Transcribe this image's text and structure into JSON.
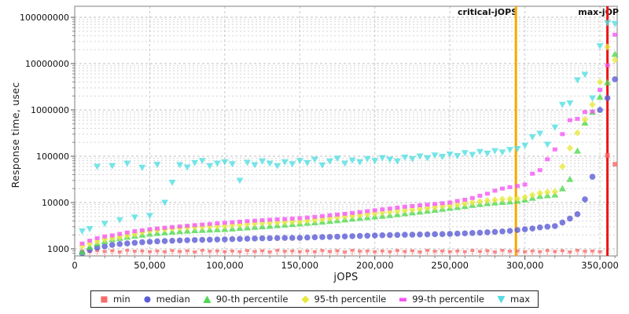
{
  "chart_data": {
    "type": "scatter",
    "title": "",
    "xlabel": "jOPS",
    "ylabel": "Response time, usec",
    "grid": "dashed",
    "legend_position": "bottom",
    "x_axis": {
      "min": 0,
      "max": 361500,
      "major_tick_step": 50000,
      "minor_tick_step": 10000,
      "tick_values": [
        0,
        50000,
        100000,
        150000,
        200000,
        250000,
        300000,
        350000
      ],
      "tick_labels": [
        "0",
        "50,000",
        "100,000",
        "150,000",
        "200,000",
        "250,000",
        "300,000",
        "350,000"
      ]
    },
    "y_axis": {
      "scale": "log",
      "min": 703,
      "max": 173000000,
      "tick_values": [
        1000,
        10000,
        100000,
        1000000,
        10000000,
        100000000
      ],
      "tick_labels": [
        "1000",
        "10000",
        "100000",
        "1000000",
        "10000000",
        "100000000"
      ]
    },
    "jops": [
      5000,
      10000,
      15000,
      20000,
      25000,
      30000,
      35000,
      40000,
      45000,
      50000,
      55000,
      60000,
      65000,
      70000,
      75000,
      80000,
      85000,
      90000,
      95000,
      100000,
      105000,
      110000,
      115000,
      120000,
      125000,
      130000,
      135000,
      140000,
      145000,
      150000,
      155000,
      160000,
      165000,
      170000,
      175000,
      180000,
      185000,
      190000,
      195000,
      200000,
      205000,
      210000,
      215000,
      220000,
      225000,
      230000,
      235000,
      240000,
      245000,
      250000,
      255000,
      260000,
      265000,
      270000,
      275000,
      280000,
      285000,
      290000,
      295000,
      300000,
      305000,
      310000,
      315000,
      320000,
      325000,
      330000,
      335000,
      340000,
      345000,
      350000,
      355000,
      360000
    ],
    "series": [
      {
        "name": "min",
        "marker": "square-stem",
        "color": "#f96a6a",
        "stem_color": "#f9a8a8",
        "values": [
          900,
          870,
          920,
          880,
          910,
          860,
          930,
          890,
          900,
          870,
          900,
          870,
          920,
          880,
          910,
          860,
          930,
          890,
          900,
          870,
          900,
          870,
          920,
          880,
          910,
          860,
          930,
          890,
          900,
          870,
          900,
          870,
          920,
          880,
          910,
          860,
          930,
          890,
          900,
          870,
          900,
          870,
          920,
          880,
          910,
          860,
          930,
          890,
          900,
          870,
          900,
          870,
          920,
          880,
          910,
          860,
          930,
          890,
          900,
          870,
          900,
          870,
          920,
          880,
          910,
          860,
          930,
          890,
          900,
          870,
          104000,
          67000
        ]
      },
      {
        "name": "median",
        "marker": "circle",
        "color": "#5b5bd6",
        "values": [
          800,
          950,
          1060,
          1130,
          1215,
          1270,
          1310,
          1350,
          1390,
          1420,
          1450,
          1470,
          1495,
          1520,
          1535,
          1550,
          1565,
          1580,
          1590,
          1600,
          1620,
          1640,
          1655,
          1670,
          1685,
          1700,
          1710,
          1720,
          1725,
          1730,
          1755,
          1780,
          1795,
          1810,
          1830,
          1850,
          1875,
          1900,
          1920,
          1940,
          1960,
          1980,
          1995,
          2010,
          2025,
          2040,
          2055,
          2070,
          2085,
          2100,
          2130,
          2160,
          2195,
          2230,
          2275,
          2320,
          2380,
          2440,
          2550,
          2650,
          2750,
          2900,
          3000,
          3100,
          3700,
          4500,
          5600,
          11700,
          36000,
          1000000,
          1800000,
          4600000
        ]
      },
      {
        "name": "90-th percentile",
        "marker": "triangle-up",
        "color": "#4fd84f",
        "values": [
          850,
          1100,
          1300,
          1450,
          1600,
          1700,
          1800,
          1900,
          2000,
          2100,
          2180,
          2250,
          2320,
          2380,
          2440,
          2500,
          2540,
          2580,
          2620,
          2650,
          2720,
          2800,
          2870,
          2950,
          3020,
          3100,
          3200,
          3300,
          3400,
          3500,
          3600,
          3700,
          3820,
          3950,
          4100,
          4250,
          4420,
          4600,
          4770,
          4950,
          5120,
          5300,
          5550,
          5800,
          6050,
          6300,
          6600,
          6900,
          7250,
          7600,
          7900,
          8300,
          8800,
          9200,
          9600,
          9900,
          10200,
          10500,
          10800,
          11500,
          12500,
          13700,
          14200,
          14700,
          20000,
          32000,
          130000,
          525000,
          900000,
          1900000,
          3900000,
          16000000
        ]
      },
      {
        "name": "95-th percentile",
        "marker": "diamond",
        "color": "#e8e83e",
        "values": [
          1150,
          1300,
          1450,
          1600,
          1700,
          1800,
          1950,
          2100,
          2280,
          2450,
          2550,
          2650,
          2750,
          2850,
          2900,
          2950,
          3000,
          3050,
          3080,
          3100,
          3200,
          3300,
          3400,
          3500,
          3580,
          3650,
          3720,
          3780,
          3840,
          3900,
          4050,
          4200,
          4370,
          4550,
          4750,
          4950,
          5150,
          5350,
          5570,
          5800,
          6050,
          6300,
          6550,
          6800,
          7050,
          7300,
          7600,
          7900,
          8250,
          8600,
          9000,
          9500,
          10000,
          10500,
          11000,
          11400,
          11800,
          12000,
          12200,
          13000,
          14500,
          16000,
          16800,
          17200,
          60000,
          150000,
          320000,
          620000,
          1300000,
          4000000,
          23000000,
          12000000
        ]
      },
      {
        "name": "99-th percentile",
        "marker": "square",
        "color": "#f556f5",
        "values": [
          1300,
          1500,
          1700,
          1850,
          1950,
          2100,
          2250,
          2400,
          2520,
          2650,
          2750,
          2850,
          2950,
          3050,
          3150,
          3250,
          3350,
          3450,
          3550,
          3650,
          3750,
          3850,
          3950,
          4050,
          4150,
          4250,
          4330,
          4400,
          4500,
          4600,
          4750,
          4900,
          5100,
          5300,
          5500,
          5700,
          5950,
          6200,
          6500,
          6800,
          7100,
          7400,
          7750,
          8100,
          8400,
          8700,
          9000,
          9300,
          9650,
          10000,
          10800,
          11500,
          12500,
          14000,
          15500,
          18000,
          20000,
          21500,
          22700,
          24500,
          42000,
          50000,
          86000,
          140000,
          300000,
          600000,
          640000,
          900000,
          920000,
          2700000,
          9200000,
          42000000
        ]
      },
      {
        "name": "max",
        "marker": "triangle-down",
        "color": "#52dee2",
        "values": [
          2400,
          2700,
          60000,
          3500,
          62000,
          4200,
          70000,
          4800,
          57000,
          5200,
          66000,
          10000,
          27000,
          65000,
          58000,
          72000,
          80000,
          62000,
          70000,
          75000,
          68000,
          30000,
          73000,
          65000,
          78000,
          70000,
          62000,
          75000,
          68000,
          80000,
          72000,
          85000,
          64000,
          78000,
          90000,
          70000,
          82000,
          75000,
          88000,
          80000,
          92000,
          85000,
          78000,
          95000,
          88000,
          100000,
          92000,
          105000,
          98000,
          110000,
          102000,
          118000,
          108000,
          125000,
          115000,
          130000,
          122000,
          138000,
          145000,
          170000,
          260000,
          310000,
          180000,
          420000,
          1300000,
          1400000,
          4400000,
          5800000,
          1800000,
          24000000,
          76000000,
          73000000
        ]
      }
    ],
    "annotations": [
      {
        "label": "critical-jOPS",
        "x": 294000,
        "color": "#f7a800"
      },
      {
        "label": "max-jOP",
        "x": 355000,
        "color": "#ed1515"
      }
    ],
    "legend": {
      "items": [
        "min",
        "median",
        "90-th percentile",
        "95-th percentile",
        "99-th percentile",
        "max"
      ]
    }
  }
}
